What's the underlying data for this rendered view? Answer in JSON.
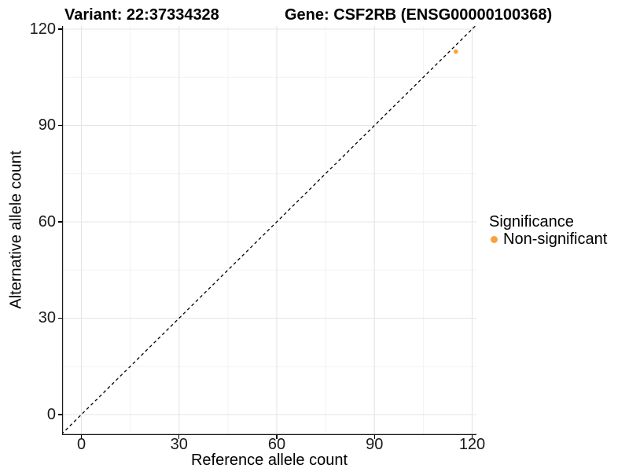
{
  "titles": {
    "variant": "Variant: 22:37334328",
    "gene": "Gene: CSF2RB (ENSG00000100368)"
  },
  "legend": {
    "title": "Significance",
    "items": [
      {
        "label": "Non-significant",
        "color": "#F9A23C",
        "marker": "circle-icon"
      }
    ]
  },
  "colors": {
    "point": "#F9A23C",
    "grid_major": "#E5E5E5",
    "grid_minor": "#F2F2F2",
    "axis_line": "#1a1a1a",
    "tick_mark": "#000000",
    "identity_line": "#000000",
    "background": "#FFFFFF"
  },
  "chart_data": {
    "type": "scatter",
    "title": "Variant: 22:37334328 — Gene: CSF2RB (ENSG00000100368)",
    "xlabel": "Reference allele count",
    "ylabel": "Alternative allele count",
    "xlim": [
      -6,
      121
    ],
    "ylim": [
      -6,
      121
    ],
    "x_ticks": [
      0,
      30,
      60,
      90,
      120
    ],
    "y_ticks": [
      0,
      30,
      60,
      90,
      120
    ],
    "x_minor_ticks": [
      15,
      45,
      75,
      105
    ],
    "y_minor_ticks": [
      15,
      45,
      75,
      105
    ],
    "grid": true,
    "legend_position": "right",
    "series": [
      {
        "name": "Non-significant",
        "color": "#F9A23C",
        "points": [
          {
            "x": 115,
            "y": 113
          }
        ]
      }
    ],
    "identity_line": {
      "style": "dashed",
      "equation": "y = x",
      "color": "#000000"
    }
  }
}
